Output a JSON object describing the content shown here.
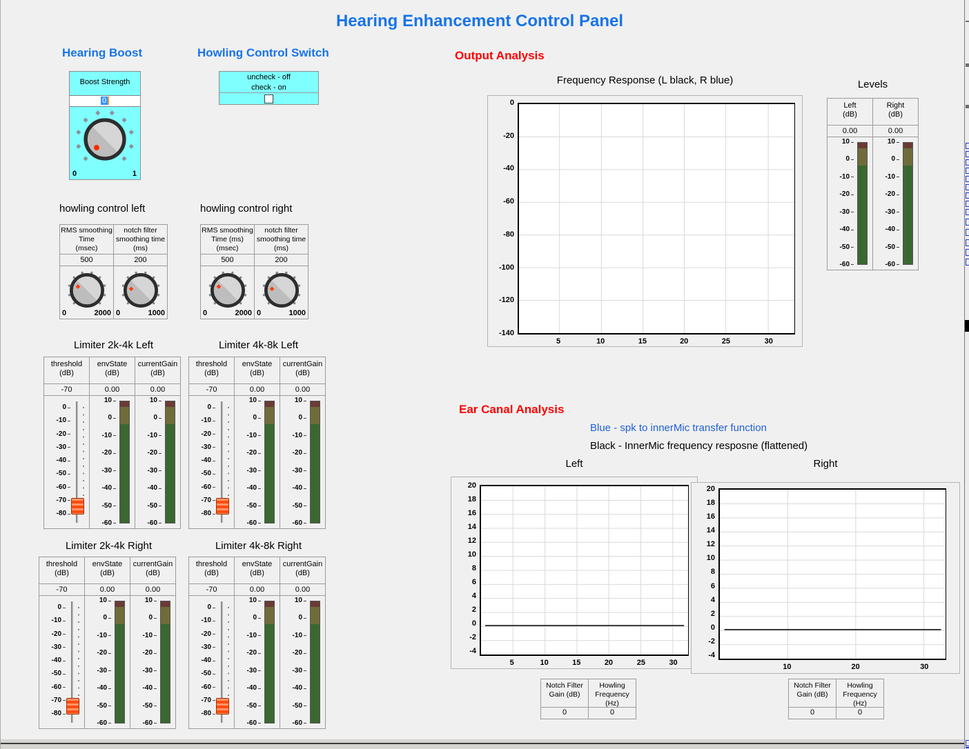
{
  "title": "Hearing Enhancement Control Panel",
  "hearing_boost": {
    "heading": "Hearing Boost",
    "label": "Boost Strength",
    "value": "0",
    "min": "0",
    "max": "1"
  },
  "howling_switch": {
    "heading": "Howling Control Switch",
    "line1": "uncheck - off",
    "line2": "check - on",
    "checked": false
  },
  "howling_left": {
    "heading": "howling control left",
    "rms": {
      "label": "RMS smoothing\nTime\n(msec)",
      "value": "500",
      "min": "0",
      "max": "2000"
    },
    "notch": {
      "label": "notch filter\nsmoothing time\n(ms)",
      "value": "200",
      "min": "0",
      "max": "1000"
    }
  },
  "howling_right": {
    "heading": "howling control right",
    "rms": {
      "label": "RMS smoothing\nTime (ms)\n(msec)",
      "value": "500",
      "min": "0",
      "max": "2000"
    },
    "notch": {
      "label": "notch filter\nsmoothing time\n(ms)",
      "value": "200",
      "min": "0",
      "max": "1000"
    }
  },
  "limiter_labels": {
    "threshold": "threshold\n(dB)",
    "envstate": "envState\n(dB)",
    "currentgain": "currentGain\n(dB)"
  },
  "limiters": [
    {
      "title": "Limiter 2k-4k Left",
      "threshold": "-70",
      "envstate": "0.00",
      "currentgain": "0.00"
    },
    {
      "title": "Limiter 4k-8k Left",
      "threshold": "-70",
      "envstate": "0.00",
      "currentgain": "0.00"
    },
    {
      "title": "Limiter 2k-4k Right",
      "threshold": "-70",
      "envstate": "0.00",
      "currentgain": "0.00"
    },
    {
      "title": "Limiter 4k-8k Right",
      "threshold": "-70",
      "envstate": "0.00",
      "currentgain": "0.00"
    }
  ],
  "scales": {
    "slider": [
      "0",
      "-10",
      "-20",
      "-30",
      "-40",
      "-50",
      "-60",
      "-70",
      "-80"
    ],
    "meter": [
      "10",
      "0",
      "-10",
      "-20",
      "-30",
      "-40",
      "-50",
      "-60"
    ]
  },
  "output": {
    "heading": "Output Analysis",
    "chart_title": "Frequency Response (L black, R blue)",
    "y_ticks": [
      "0",
      "-20",
      "-40",
      "-60",
      "-80",
      "-100",
      "-120",
      "-140"
    ],
    "x_ticks": [
      "5",
      "10",
      "15",
      "20",
      "25",
      "30"
    ]
  },
  "levels": {
    "heading": "Levels",
    "left_label": "Left\n(dB)",
    "left_value": "0.00",
    "right_label": "Right\n(dB)",
    "right_value": "0.00"
  },
  "ear": {
    "heading": "Ear Canal Analysis",
    "legend_blue": "Blue - spk to innerMic transfer function",
    "legend_black": "Black - InnerMic frequency resposne (flattened)",
    "left_title": "Left",
    "right_title": "Right",
    "y_ticks": [
      "20",
      "18",
      "16",
      "14",
      "12",
      "10",
      "8",
      "6",
      "4",
      "2",
      "0",
      "-2",
      "-4"
    ],
    "left_x_ticks": [
      "5",
      "10",
      "15",
      "20",
      "25",
      "30"
    ],
    "right_x_ticks": [
      "10",
      "20",
      "30"
    ],
    "table_labels": {
      "gain": "Notch Filter\nGain (dB)",
      "freq": "Howling\nFrequency\n(Hz)"
    },
    "left_table": {
      "gain": "0",
      "freq": "0"
    },
    "right_table": {
      "gain": "0",
      "freq": "0"
    }
  },
  "colors": {
    "panel_cyan": "#80ffff",
    "heading_blue": "#1874e8",
    "heading_red": "#ff0000",
    "meter_green": "#3b6731",
    "meter_olive": "#6f6c3a",
    "meter_maroon": "#6b3a36",
    "slider_handle": "#ff4c12",
    "knob_indicator": "#ff2a00"
  },
  "chart_data": [
    {
      "type": "line",
      "title": "Frequency Response (L black, R blue)",
      "xlabel": "",
      "ylabel": "",
      "xlim": [
        0,
        33
      ],
      "ylim": [
        -140,
        0
      ],
      "x_ticks": [
        5,
        10,
        15,
        20,
        25,
        30
      ],
      "y_ticks": [
        0,
        -20,
        -40,
        -60,
        -80,
        -100,
        -120,
        -140
      ],
      "grid": true,
      "series": []
    },
    {
      "type": "line",
      "title": "Left",
      "xlabel": "",
      "ylabel": "",
      "xlim": [
        0,
        33
      ],
      "ylim": [
        -4,
        20
      ],
      "x_ticks": [
        5,
        10,
        15,
        20,
        25,
        30
      ],
      "y_ticks": [
        20,
        18,
        16,
        14,
        12,
        10,
        8,
        6,
        4,
        2,
        0,
        -2,
        -4
      ],
      "grid": true,
      "series": [
        {
          "name": "InnerMic frequency response (flattened)",
          "color": "#000000",
          "x": [
            1,
            32
          ],
          "y": [
            0.1,
            0.1
          ]
        }
      ]
    },
    {
      "type": "line",
      "title": "Right",
      "xlabel": "",
      "ylabel": "",
      "xlim": [
        0,
        33
      ],
      "ylim": [
        -4,
        20
      ],
      "x_ticks": [
        10,
        20,
        30
      ],
      "y_ticks": [
        20,
        18,
        16,
        14,
        12,
        10,
        8,
        6,
        4,
        2,
        0,
        -2,
        -4
      ],
      "grid": true,
      "series": [
        {
          "name": "InnerMic frequency response (flattened)",
          "color": "#000000",
          "x": [
            1,
            32
          ],
          "y": [
            0.1,
            0.1
          ]
        }
      ]
    }
  ]
}
